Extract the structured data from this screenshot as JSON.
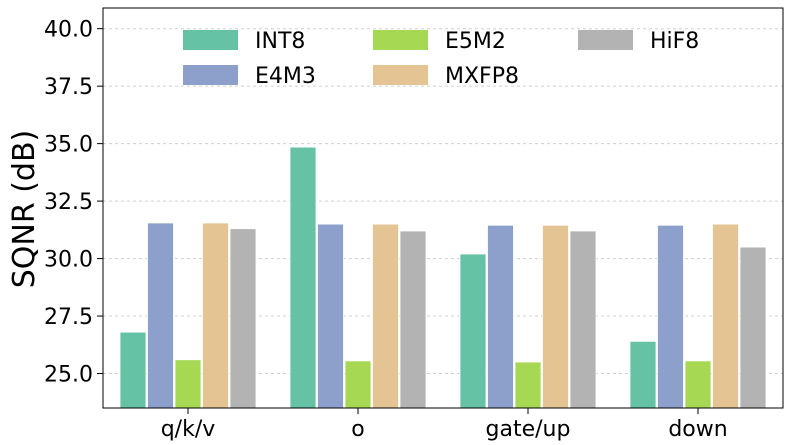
{
  "chart_data": {
    "type": "bar",
    "title": "",
    "xlabel": "",
    "ylabel": "SQNR (dB)",
    "ylim": [
      23.5,
      40.9
    ],
    "yticks": [
      "25.0",
      "27.5",
      "30.0",
      "32.5",
      "35.0",
      "37.5",
      "40.0"
    ],
    "ytick_values": [
      25.0,
      27.5,
      30.0,
      32.5,
      35.0,
      37.5,
      40.0
    ],
    "grid": true,
    "legend_position": "top",
    "categories": [
      "q/k/v",
      "o",
      "gate/up",
      "down"
    ],
    "series": [
      {
        "name": "INT8",
        "color": "#66c2a5",
        "values": [
          26.8,
          34.85,
          30.2,
          26.4
        ]
      },
      {
        "name": "E4M3",
        "color": "#8da0cb",
        "values": [
          31.55,
          31.5,
          31.45,
          31.45
        ]
      },
      {
        "name": "E5M2",
        "color": "#a6d854",
        "values": [
          25.6,
          25.55,
          25.5,
          25.55
        ]
      },
      {
        "name": "MXFP8",
        "color": "#e5c494",
        "values": [
          31.55,
          31.5,
          31.45,
          31.5
        ]
      },
      {
        "name": "HiF8",
        "color": "#b3b3b3",
        "values": [
          31.3,
          31.2,
          31.2,
          30.5
        ]
      }
    ]
  }
}
